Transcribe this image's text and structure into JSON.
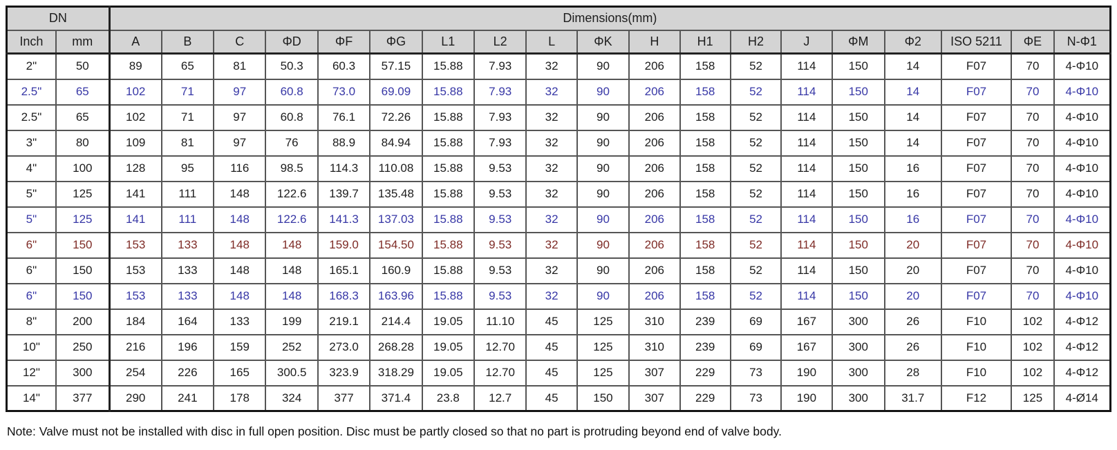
{
  "table": {
    "header_group": {
      "dn": "DN",
      "dimensions": "Dimensions(mm)"
    },
    "columns": [
      "Inch",
      "mm",
      "A",
      "B",
      "C",
      "ΦD",
      "ΦF",
      "ΦG",
      "L1",
      "L2",
      "L",
      "ΦK",
      "H",
      "H1",
      "H2",
      "J",
      "ΦM",
      "Φ2",
      "ISO 5211",
      "ΦE",
      "N-Φ1"
    ],
    "rows": [
      {
        "color": "black",
        "cells": [
          "2\"",
          "50",
          "89",
          "65",
          "81",
          "50.3",
          "60.3",
          "57.15",
          "15.88",
          "7.93",
          "32",
          "90",
          "206",
          "158",
          "52",
          "114",
          "150",
          "14",
          "F07",
          "70",
          "4-Φ10"
        ]
      },
      {
        "color": "blue",
        "cells": [
          "2.5\"",
          "65",
          "102",
          "71",
          "97",
          "60.8",
          "73.0",
          "69.09",
          "15.88",
          "7.93",
          "32",
          "90",
          "206",
          "158",
          "52",
          "114",
          "150",
          "14",
          "F07",
          "70",
          "4-Φ10"
        ]
      },
      {
        "color": "black",
        "cells": [
          "2.5\"",
          "65",
          "102",
          "71",
          "97",
          "60.8",
          "76.1",
          "72.26",
          "15.88",
          "7.93",
          "32",
          "90",
          "206",
          "158",
          "52",
          "114",
          "150",
          "14",
          "F07",
          "70",
          "4-Φ10"
        ]
      },
      {
        "color": "black",
        "cells": [
          "3\"",
          "80",
          "109",
          "81",
          "97",
          "76",
          "88.9",
          "84.94",
          "15.88",
          "7.93",
          "32",
          "90",
          "206",
          "158",
          "52",
          "114",
          "150",
          "14",
          "F07",
          "70",
          "4-Φ10"
        ]
      },
      {
        "color": "black",
        "cells": [
          "4\"",
          "100",
          "128",
          "95",
          "116",
          "98.5",
          "114.3",
          "110.08",
          "15.88",
          "9.53",
          "32",
          "90",
          "206",
          "158",
          "52",
          "114",
          "150",
          "16",
          "F07",
          "70",
          "4-Φ10"
        ]
      },
      {
        "color": "black",
        "cells": [
          "5\"",
          "125",
          "141",
          "111",
          "148",
          "122.6",
          "139.7",
          "135.48",
          "15.88",
          "9.53",
          "32",
          "90",
          "206",
          "158",
          "52",
          "114",
          "150",
          "16",
          "F07",
          "70",
          "4-Φ10"
        ]
      },
      {
        "color": "blue",
        "cells": [
          "5\"",
          "125",
          "141",
          "111",
          "148",
          "122.6",
          "141.3",
          "137.03",
          "15.88",
          "9.53",
          "32",
          "90",
          "206",
          "158",
          "52",
          "114",
          "150",
          "16",
          "F07",
          "70",
          "4-Φ10"
        ]
      },
      {
        "color": "red",
        "cells": [
          "6\"",
          "150",
          "153",
          "133",
          "148",
          "148",
          "159.0",
          "154.50",
          "15.88",
          "9.53",
          "32",
          "90",
          "206",
          "158",
          "52",
          "114",
          "150",
          "20",
          "F07",
          "70",
          "4-Φ10"
        ]
      },
      {
        "color": "black",
        "cells": [
          "6\"",
          "150",
          "153",
          "133",
          "148",
          "148",
          "165.1",
          "160.9",
          "15.88",
          "9.53",
          "32",
          "90",
          "206",
          "158",
          "52",
          "114",
          "150",
          "20",
          "F07",
          "70",
          "4-Φ10"
        ]
      },
      {
        "color": "blue",
        "cells": [
          "6\"",
          "150",
          "153",
          "133",
          "148",
          "148",
          "168.3",
          "163.96",
          "15.88",
          "9.53",
          "32",
          "90",
          "206",
          "158",
          "52",
          "114",
          "150",
          "20",
          "F07",
          "70",
          "4-Φ10"
        ]
      },
      {
        "color": "black",
        "cells": [
          "8\"",
          "200",
          "184",
          "164",
          "133",
          "199",
          "219.1",
          "214.4",
          "19.05",
          "11.10",
          "45",
          "125",
          "310",
          "239",
          "69",
          "167",
          "300",
          "26",
          "F10",
          "102",
          "4-Φ12"
        ]
      },
      {
        "color": "black",
        "cells": [
          "10\"",
          "250",
          "216",
          "196",
          "159",
          "252",
          "273.0",
          "268.28",
          "19.05",
          "12.70",
          "45",
          "125",
          "310",
          "239",
          "69",
          "167",
          "300",
          "26",
          "F10",
          "102",
          "4-Φ12"
        ]
      },
      {
        "color": "black",
        "cells": [
          "12\"",
          "300",
          "254",
          "226",
          "165",
          "300.5",
          "323.9",
          "318.29",
          "19.05",
          "12.70",
          "45",
          "125",
          "307",
          "229",
          "73",
          "190",
          "300",
          "28",
          "F10",
          "102",
          "4-Φ12"
        ]
      },
      {
        "color": "black",
        "cells": [
          "14\"",
          "377",
          "290",
          "241",
          "178",
          "324",
          "377",
          "371.4",
          "23.8",
          "12.7",
          "45",
          "150",
          "307",
          "229",
          "73",
          "190",
          "300",
          "31.7",
          "F12",
          "125",
          "4-Ø14"
        ]
      }
    ]
  },
  "note": {
    "text": "Note: Valve must not be installed with disc in full open position. Disc must be partly closed so that no part is protruding beyond end of valve body."
  },
  "colors": {
    "header_bg": "#d4d4d4",
    "row_text_black": "#1d1d1d",
    "row_text_blue": "#3737a6",
    "row_text_red": "#7e2b26",
    "border_inner": "#555555",
    "border_outer": "#141414"
  }
}
